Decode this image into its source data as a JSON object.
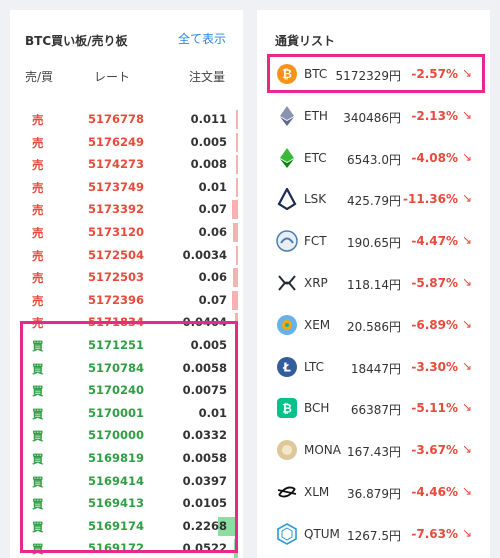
{
  "orderbook": {
    "title": "BTC買い板/売り板",
    "show_all": "全て表示",
    "headers": {
      "side": "売/買",
      "rate": "レート",
      "qty": "注文量"
    },
    "sell": [
      {
        "side": "売",
        "rate": "5176778",
        "qty": "0.011",
        "depth": 0.03
      },
      {
        "side": "売",
        "rate": "5176249",
        "qty": "0.005",
        "depth": 0.01
      },
      {
        "side": "売",
        "rate": "5174273",
        "qty": "0.008",
        "depth": 0.02
      },
      {
        "side": "売",
        "rate": "5173749",
        "qty": "0.01",
        "depth": 0.02
      },
      {
        "side": "売",
        "rate": "5173392",
        "qty": "0.07",
        "depth": 0.28
      },
      {
        "side": "売",
        "rate": "5173120",
        "qty": "0.06",
        "depth": 0.24
      },
      {
        "side": "売",
        "rate": "5172504",
        "qty": "0.0034",
        "depth": 0.01
      },
      {
        "side": "売",
        "rate": "5172503",
        "qty": "0.06",
        "depth": 0.24
      },
      {
        "side": "売",
        "rate": "5172396",
        "qty": "0.07",
        "depth": 0.28
      },
      {
        "side": "売",
        "rate": "5171834",
        "qty": "0.0404",
        "depth": 0.16
      }
    ],
    "buy": [
      {
        "side": "買",
        "rate": "5171251",
        "qty": "0.005",
        "depth": 0.02
      },
      {
        "side": "買",
        "rate": "5170784",
        "qty": "0.0058",
        "depth": 0.02
      },
      {
        "side": "買",
        "rate": "5170240",
        "qty": "0.0075",
        "depth": 0.03
      },
      {
        "side": "買",
        "rate": "5170001",
        "qty": "0.01",
        "depth": 0.04
      },
      {
        "side": "買",
        "rate": "5170000",
        "qty": "0.0332",
        "depth": 0.14
      },
      {
        "side": "買",
        "rate": "5169819",
        "qty": "0.0058",
        "depth": 0.02
      },
      {
        "side": "買",
        "rate": "5169414",
        "qty": "0.0397",
        "depth": 0.17
      },
      {
        "side": "買",
        "rate": "5169413",
        "qty": "0.0105",
        "depth": 0.04
      },
      {
        "side": "買",
        "rate": "5169174",
        "qty": "0.2268",
        "depth": 1.0
      },
      {
        "side": "買",
        "rate": "5169172",
        "qty": "0.0522",
        "depth": 0.22
      }
    ]
  },
  "currency_list": {
    "title": "通貨リスト",
    "items": [
      {
        "symbol": "BTC",
        "price": "5172329円",
        "change": "-2.57%",
        "icon": "btc-icon",
        "color": "#f7931a"
      },
      {
        "symbol": "ETH",
        "price": "340486円",
        "change": "-2.13%",
        "icon": "eth-icon",
        "color": "#627eea"
      },
      {
        "symbol": "ETC",
        "price": "6543.0円",
        "change": "-4.08%",
        "icon": "etc-icon",
        "color": "#3ab83a"
      },
      {
        "symbol": "LSK",
        "price": "425.79円",
        "change": "-11.36%",
        "icon": "lsk-icon",
        "color": "#1a2b4c"
      },
      {
        "symbol": "FCT",
        "price": "190.65円",
        "change": "-4.47%",
        "icon": "fct-icon",
        "color": "#4a7fb5"
      },
      {
        "symbol": "XRP",
        "price": "118.14円",
        "change": "-5.87%",
        "icon": "xrp-icon",
        "color": "#23292f"
      },
      {
        "symbol": "XEM",
        "price": "20.586円",
        "change": "-6.89%",
        "icon": "xem-icon",
        "color": "#67b2e8"
      },
      {
        "symbol": "LTC",
        "price": "18447円",
        "change": "-3.30%",
        "icon": "ltc-icon",
        "color": "#345d9d"
      },
      {
        "symbol": "BCH",
        "price": "66387円",
        "change": "-5.11%",
        "icon": "bch-icon",
        "color": "#0ac18e"
      },
      {
        "symbol": "MONA",
        "price": "167.43円",
        "change": "-3.67%",
        "icon": "mona-icon",
        "color": "#dec799"
      },
      {
        "symbol": "XLM",
        "price": "36.879円",
        "change": "-4.46%",
        "icon": "xlm-icon",
        "color": "#111111"
      },
      {
        "symbol": "QTUM",
        "price": "1267.5円",
        "change": "-7.63%",
        "icon": "qtum-icon",
        "color": "#2e9ad0"
      }
    ]
  }
}
